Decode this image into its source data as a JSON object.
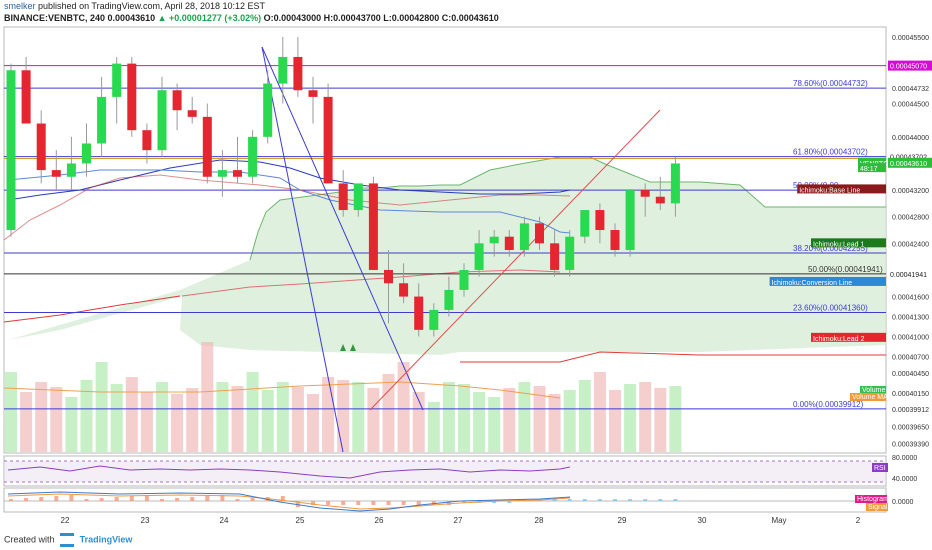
{
  "header": {
    "author": "smelker",
    "published": "published on TradingView.com, April 28, 2018 10:12 EST",
    "symbol_line": "BINANCE:VENBTC, 240",
    "last": "0.00043610",
    "change": "▲ +0.00001277 (+3.02%)",
    "ohlc": "O:0.00043000 H:0.00043700 L:0.00042800 C:0.00043610"
  },
  "footer": {
    "created_with": "Created with",
    "brand": "TradingView"
  },
  "colors": {
    "up": "#29d94f",
    "down": "#e3262f",
    "fib": "#3c3ccf",
    "cloud": "#d5ebd3",
    "magenta": "#d40cd4"
  },
  "chart_data": [
    {
      "type": "candlestick",
      "title": "BINANCE:VENBTC, 240",
      "x_ticks": [
        "22",
        "23",
        "24",
        "25",
        "26",
        "27",
        "28",
        "29",
        "30",
        "May",
        "2"
      ],
      "y_ticks": [
        "0.00045500",
        "0.00045070",
        "0.00044732",
        "0.00044500",
        "0.00044000",
        "0.00043702",
        "0.00043610",
        "0.00043200",
        "0.00042800",
        "0.00042400",
        "0.00041941",
        "0.00041600",
        "0.00041300",
        "0.00041000",
        "0.00040700",
        "0.00040450",
        "0.00040150",
        "0.00039912",
        "0.00039650",
        "0.00039390"
      ],
      "ylim": [
        0.0003925,
        0.0004565
      ],
      "candles": [
        {
          "o": 0.000426,
          "h": 0.000451,
          "l": 0.000425,
          "c": 0.00045
        },
        {
          "o": 0.00045,
          "h": 0.000452,
          "l": 0.000442,
          "c": 0.000442
        },
        {
          "o": 0.000442,
          "h": 0.000444,
          "l": 0.000433,
          "c": 0.000435
        },
        {
          "o": 0.000435,
          "h": 0.000438,
          "l": 0.000432,
          "c": 0.000434
        },
        {
          "o": 0.000434,
          "h": 0.00044,
          "l": 0.000432,
          "c": 0.000436
        },
        {
          "o": 0.000436,
          "h": 0.000442,
          "l": 0.000434,
          "c": 0.000439
        },
        {
          "o": 0.000439,
          "h": 0.000449,
          "l": 0.000437,
          "c": 0.000446
        },
        {
          "o": 0.000446,
          "h": 0.000452,
          "l": 0.000442,
          "c": 0.000451
        },
        {
          "o": 0.000451,
          "h": 0.000452,
          "l": 0.00044,
          "c": 0.000441
        },
        {
          "o": 0.000441,
          "h": 0.000442,
          "l": 0.000436,
          "c": 0.000438
        },
        {
          "o": 0.000438,
          "h": 0.000449,
          "l": 0.000437,
          "c": 0.000447
        },
        {
          "o": 0.000447,
          "h": 0.000448,
          "l": 0.000441,
          "c": 0.000444
        },
        {
          "o": 0.000444,
          "h": 0.000446,
          "l": 0.000442,
          "c": 0.000443
        },
        {
          "o": 0.000443,
          "h": 0.000445,
          "l": 0.000433,
          "c": 0.000434
        },
        {
          "o": 0.000434,
          "h": 0.000438,
          "l": 0.000431,
          "c": 0.000435
        },
        {
          "o": 0.000435,
          "h": 0.00044,
          "l": 0.000433,
          "c": 0.000434
        },
        {
          "o": 0.000434,
          "h": 0.000441,
          "l": 0.000433,
          "c": 0.00044
        },
        {
          "o": 0.00044,
          "h": 0.00045,
          "l": 0.000439,
          "c": 0.000448
        },
        {
          "o": 0.000448,
          "h": 0.000455,
          "l": 0.000445,
          "c": 0.000452
        },
        {
          "o": 0.000452,
          "h": 0.000455,
          "l": 0.000446,
          "c": 0.000447
        },
        {
          "o": 0.000447,
          "h": 0.000449,
          "l": 0.000442,
          "c": 0.000446
        },
        {
          "o": 0.000446,
          "h": 0.000448,
          "l": 0.000433,
          "c": 0.000433
        },
        {
          "o": 0.000433,
          "h": 0.000435,
          "l": 0.000428,
          "c": 0.000429
        },
        {
          "o": 0.000429,
          "h": 0.000433,
          "l": 0.000428,
          "c": 0.000433
        },
        {
          "o": 0.000433,
          "h": 0.000434,
          "l": 0.00042,
          "c": 0.00042
        },
        {
          "o": 0.00042,
          "h": 0.000423,
          "l": 0.000412,
          "c": 0.000418
        },
        {
          "o": 0.000418,
          "h": 0.000421,
          "l": 0.000415,
          "c": 0.000416
        },
        {
          "o": 0.000416,
          "h": 0.000418,
          "l": 0.00041,
          "c": 0.000411
        },
        {
          "o": 0.000411,
          "h": 0.000415,
          "l": 0.00041,
          "c": 0.000414
        },
        {
          "o": 0.000414,
          "h": 0.000419,
          "l": 0.000413,
          "c": 0.000417
        },
        {
          "o": 0.000417,
          "h": 0.000421,
          "l": 0.000416,
          "c": 0.00042
        },
        {
          "o": 0.00042,
          "h": 0.000426,
          "l": 0.000419,
          "c": 0.000424
        },
        {
          "o": 0.000424,
          "h": 0.000426,
          "l": 0.000422,
          "c": 0.000425
        },
        {
          "o": 0.000425,
          "h": 0.000426,
          "l": 0.000422,
          "c": 0.000423
        },
        {
          "o": 0.000423,
          "h": 0.000428,
          "l": 0.000422,
          "c": 0.000427
        },
        {
          "o": 0.000427,
          "h": 0.000428,
          "l": 0.000423,
          "c": 0.000424
        },
        {
          "o": 0.000424,
          "h": 0.000426,
          "l": 0.000419,
          "c": 0.00042
        },
        {
          "o": 0.00042,
          "h": 0.000426,
          "l": 0.000419,
          "c": 0.000425
        },
        {
          "o": 0.000425,
          "h": 0.000429,
          "l": 0.000424,
          "c": 0.000429
        },
        {
          "o": 0.000429,
          "h": 0.00043,
          "l": 0.000424,
          "c": 0.000426
        },
        {
          "o": 0.000426,
          "h": 0.000427,
          "l": 0.000422,
          "c": 0.000423
        },
        {
          "o": 0.000423,
          "h": 0.000432,
          "l": 0.000422,
          "c": 0.000432
        },
        {
          "o": 0.000432,
          "h": 0.000433,
          "l": 0.000428,
          "c": 0.000431
        },
        {
          "o": 0.000431,
          "h": 0.000434,
          "l": 0.000429,
          "c": 0.00043
        },
        {
          "o": 0.00043,
          "h": 0.000437,
          "l": 0.000428,
          "c": 0.000436
        }
      ],
      "fib_levels": [
        {
          "label": "78.60%(0.00044732)",
          "value": 0.00044732
        },
        {
          "label": "61.80%(0.00043702)",
          "value": 0.00043702
        },
        {
          "label": "50.00%(0.00",
          "value": 0.000432
        },
        {
          "label": "38.20%(0.00042255)",
          "value": 0.00042255
        },
        {
          "label": "50.00%(0.00041941)",
          "value": 0.00041941
        },
        {
          "label": "23.60%(0.00041360)",
          "value": 0.0004136
        },
        {
          "label": "0.00%(0.00039912)",
          "value": 0.00039912
        }
      ],
      "magenta_level": 0.0004507,
      "axis_tags": [
        {
          "text": "0.00045070",
          "value": 0.0004507,
          "bg": "#d40cd4",
          "fg": "#ffffff"
        },
        {
          "text": "0.00043702",
          "value": 0.00043702,
          "bg": "#ffffff",
          "fg": "#222222"
        },
        {
          "text": "0.00043610",
          "value": 0.0004361,
          "bg": "#2ebd3a",
          "fg": "#ffffff"
        },
        {
          "text": "0.00041941",
          "value": 0.00041941,
          "bg": "#ffffff",
          "fg": "#222222"
        }
      ],
      "labels": [
        {
          "text": "VENBTC",
          "value": 0.0004361,
          "bg": "#2ebd3a"
        },
        {
          "text": "48:17",
          "value": 0.0004353,
          "bg": "#2ebd3a"
        },
        {
          "text": "Ichimoku:Base Line",
          "value": 0.0004321,
          "bg": "#8b1a1a"
        },
        {
          "text": "Ichimoku:Lead 1",
          "value": 0.000424,
          "bg": "#1b7a1b"
        },
        {
          "text": "Ichimoku:Conversion Line",
          "value": 0.0004182,
          "bg": "#2a8ad8"
        },
        {
          "text": "Ichimoku:Lead 2",
          "value": 0.0004098,
          "bg": "#e3262f"
        }
      ]
    },
    {
      "type": "bar",
      "title": "Volume",
      "legend": [
        "Volume",
        "Volume MA"
      ]
    },
    {
      "type": "line",
      "title": "RSI",
      "y_ticks": [
        "80.0000",
        "40.0000"
      ],
      "tag": "RSI"
    },
    {
      "type": "line",
      "title": "MACD",
      "y_ticks": [
        "0.0000"
      ],
      "legend": [
        "Histogram",
        "Signal"
      ]
    }
  ]
}
